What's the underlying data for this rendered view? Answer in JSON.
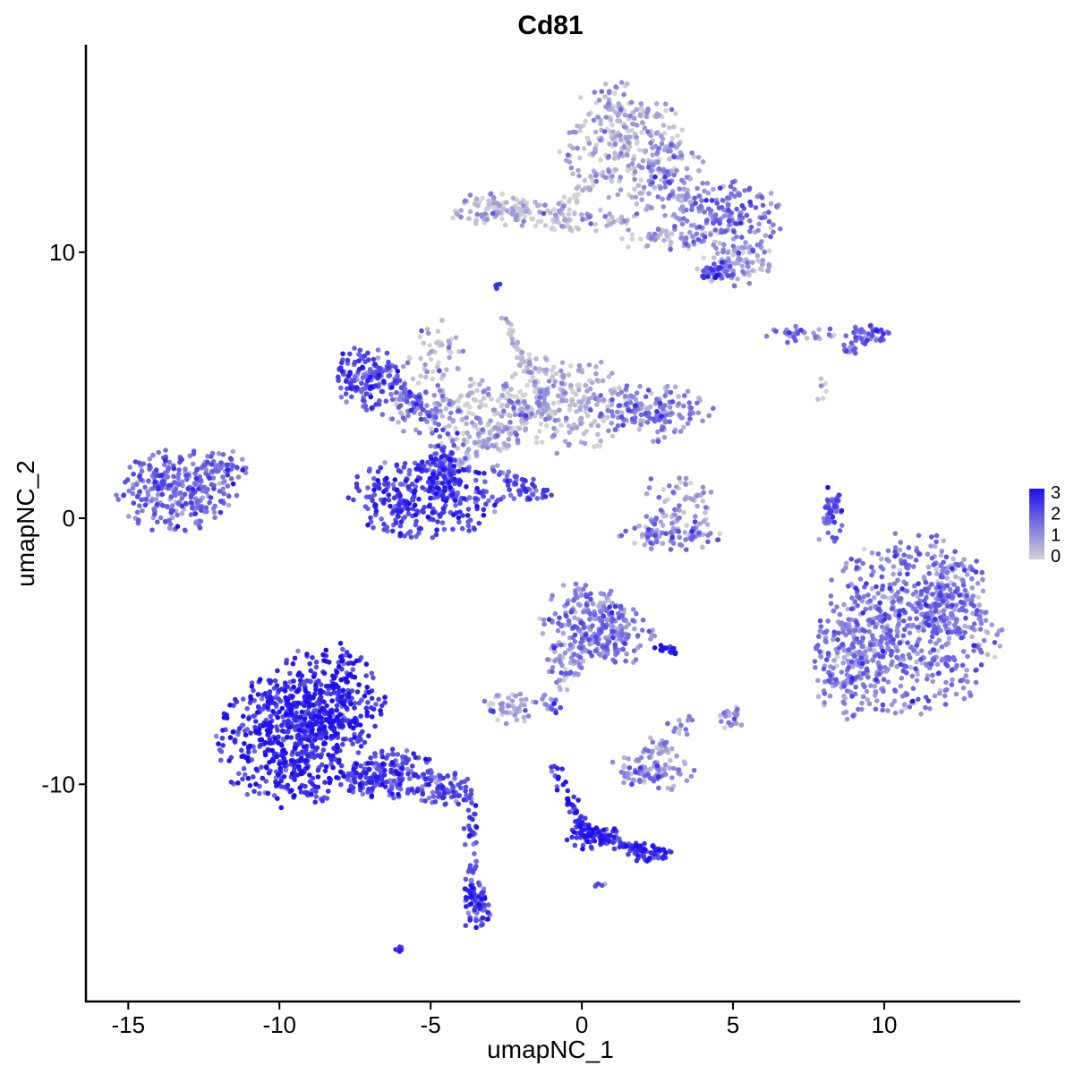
{
  "chart_data": {
    "type": "scatter",
    "title": "Cd81",
    "xlabel": "umapNC_1",
    "ylabel": "umapNC_2",
    "xlim": [
      -16.4,
      14.5
    ],
    "ylim": [
      -18.2,
      17.8
    ],
    "x_ticks": [
      -15,
      -10,
      -5,
      0,
      5,
      10
    ],
    "x_tick_labels": [
      "-15",
      "-10",
      "-5",
      "0",
      "5",
      "10"
    ],
    "y_ticks": [
      -10,
      0,
      10
    ],
    "y_tick_labels": [
      "-10",
      "0",
      "10"
    ],
    "grid": false,
    "legend": {
      "position": "right",
      "labels": [
        "3",
        "2",
        "1",
        "0"
      ],
      "values": [
        3,
        2,
        1,
        0
      ]
    },
    "color_scale": {
      "low": "#d3d3d3",
      "high": "#1e10ee",
      "min": 0,
      "max": 3
    },
    "clusters": [
      {
        "cx": 1.3,
        "cy": 14.2,
        "rx": 1.3,
        "ry": 1.4,
        "n": 260,
        "expr": 0.5
      },
      {
        "cx": 2.8,
        "cy": 12.6,
        "rx": 0.9,
        "ry": 1.0,
        "n": 120,
        "expr": 1.0
      },
      {
        "cx": 4.8,
        "cy": 11.3,
        "rx": 1.2,
        "ry": 0.9,
        "n": 170,
        "expr": 1.3
      },
      {
        "cx": 5.2,
        "cy": 9.5,
        "rx": 0.9,
        "ry": 0.5,
        "n": 90,
        "expr": 0.6
      },
      {
        "cx": 4.5,
        "cy": 9.2,
        "rx": 0.4,
        "ry": 0.3,
        "n": 40,
        "expr": 1.9
      },
      {
        "cx": -2.8,
        "cy": 11.6,
        "rx": 1.1,
        "ry": 0.4,
        "n": 100,
        "expr": 0.4
      },
      {
        "cx": -0.5,
        "cy": 11.2,
        "rx": 1.5,
        "ry": 0.3,
        "n": 70,
        "expr": 0.4
      },
      {
        "cx": 2.9,
        "cy": 10.5,
        "rx": 1.3,
        "ry": 0.3,
        "n": 60,
        "expr": 0.2
      },
      {
        "cx": -2.8,
        "cy": 8.8,
        "rx": 0.12,
        "ry": 0.12,
        "n": 6,
        "expr": 2.5
      },
      {
        "cx": 7.3,
        "cy": 6.9,
        "rx": 0.8,
        "ry": 0.2,
        "n": 30,
        "expr": 1.3
      },
      {
        "cx": 9.5,
        "cy": 6.9,
        "rx": 0.5,
        "ry": 0.3,
        "n": 40,
        "expr": 1.8
      },
      {
        "cx": 8.0,
        "cy": 4.8,
        "rx": 0.2,
        "ry": 0.3,
        "n": 6,
        "expr": 0.2
      },
      {
        "cx": -7.1,
        "cy": 5.3,
        "rx": 0.7,
        "ry": 0.8,
        "n": 150,
        "expr": 2.0
      },
      {
        "cx": -5.4,
        "cy": 4.5,
        "rx": 0.9,
        "ry": 0.9,
        "n": 80,
        "expr": 1.0
      },
      {
        "cx": -4.8,
        "cy": 6.2,
        "rx": 0.6,
        "ry": 0.8,
        "n": 40,
        "expr": 0.2
      },
      {
        "cx": -3.2,
        "cy": 3.8,
        "rx": 1.2,
        "ry": 1.0,
        "n": 170,
        "expr": 0.4
      },
      {
        "cx": -0.6,
        "cy": 4.3,
        "rx": 1.4,
        "ry": 1.2,
        "n": 220,
        "expr": 0.5
      },
      {
        "cx": 2.3,
        "cy": 4.1,
        "rx": 1.3,
        "ry": 0.6,
        "n": 150,
        "expr": 1.2
      },
      {
        "cx": -5.2,
        "cy": 0.8,
        "rx": 1.6,
        "ry": 1.0,
        "n": 340,
        "expr": 2.2
      },
      {
        "cx": -4.5,
        "cy": 2.2,
        "rx": 0.5,
        "ry": 0.8,
        "n": 70,
        "expr": 2.0
      },
      {
        "cx": -1.8,
        "cy": 1.1,
        "rx": 0.7,
        "ry": 0.3,
        "n": 30,
        "expr": 2.0
      },
      {
        "cx": -13.4,
        "cy": 1.0,
        "rx": 1.3,
        "ry": 1.0,
        "n": 300,
        "expr": 1.5
      },
      {
        "cx": -11.8,
        "cy": 2.0,
        "rx": 0.5,
        "ry": 0.4,
        "n": 40,
        "expr": 1.4
      },
      {
        "cx": 3.2,
        "cy": 0.6,
        "rx": 0.8,
        "ry": 0.8,
        "n": 60,
        "expr": 0.8
      },
      {
        "cx": 2.9,
        "cy": -0.6,
        "rx": 1.1,
        "ry": 0.4,
        "n": 90,
        "expr": 1.2
      },
      {
        "cx": 8.3,
        "cy": 0.2,
        "rx": 0.2,
        "ry": 0.9,
        "n": 30,
        "expr": 1.8
      },
      {
        "cx": 0.2,
        "cy": -3.9,
        "rx": 1.0,
        "ry": 1.0,
        "n": 200,
        "expr": 1.2
      },
      {
        "cx": 1.0,
        "cy": -4.5,
        "rx": 0.9,
        "ry": 0.7,
        "n": 90,
        "expr": 1.3
      },
      {
        "cx": -0.7,
        "cy": -5.5,
        "rx": 0.3,
        "ry": 0.7,
        "n": 25,
        "expr": 1.0
      },
      {
        "cx": -2.4,
        "cy": -7.1,
        "rx": 0.6,
        "ry": 0.4,
        "n": 50,
        "expr": 0.6
      },
      {
        "cx": 2.8,
        "cy": -5.0,
        "rx": 0.3,
        "ry": 0.15,
        "n": 18,
        "expr": 2.6
      },
      {
        "cx": 5.0,
        "cy": -7.5,
        "rx": 0.3,
        "ry": 0.3,
        "n": 20,
        "expr": 0.9
      },
      {
        "cx": 3.3,
        "cy": -7.7,
        "rx": 0.3,
        "ry": 0.3,
        "n": 12,
        "expr": 1.0
      },
      {
        "cx": -0.9,
        "cy": -7.2,
        "rx": 0.2,
        "ry": 0.2,
        "n": 8,
        "expr": 1.8
      },
      {
        "cx": 2.3,
        "cy": -9.5,
        "rx": 0.9,
        "ry": 0.5,
        "n": 90,
        "expr": 1.1
      },
      {
        "cx": 2.5,
        "cy": -8.6,
        "rx": 0.4,
        "ry": 0.3,
        "n": 20,
        "expr": 0.8
      },
      {
        "cx": 10.9,
        "cy": -4.0,
        "rx": 1.9,
        "ry": 2.2,
        "n": 650,
        "expr": 1.3
      },
      {
        "cx": 8.8,
        "cy": -5.4,
        "rx": 0.8,
        "ry": 1.4,
        "n": 170,
        "expr": 1.2
      },
      {
        "cx": 12.2,
        "cy": -3.0,
        "rx": 0.6,
        "ry": 0.9,
        "n": 80,
        "expr": 1.2
      },
      {
        "cx": -9.7,
        "cy": -8.4,
        "rx": 1.5,
        "ry": 1.6,
        "n": 520,
        "expr": 2.5
      },
      {
        "cx": -8.4,
        "cy": -6.8,
        "rx": 1.2,
        "ry": 1.4,
        "n": 280,
        "expr": 2.6
      },
      {
        "cx": -6.4,
        "cy": -9.6,
        "rx": 1.1,
        "ry": 0.6,
        "n": 190,
        "expr": 2.1
      },
      {
        "cx": -4.5,
        "cy": -10.2,
        "rx": 0.7,
        "ry": 0.4,
        "n": 70,
        "expr": 1.9
      },
      {
        "cx": -3.5,
        "cy": -14.6,
        "rx": 0.35,
        "ry": 0.6,
        "n": 70,
        "expr": 2.1
      },
      {
        "cx": -6.1,
        "cy": -16.2,
        "rx": 0.15,
        "ry": 0.1,
        "n": 6,
        "expr": 1.8
      },
      {
        "cx": 0.4,
        "cy": -12.0,
        "rx": 0.6,
        "ry": 0.3,
        "n": 60,
        "expr": 2.6
      },
      {
        "cx": 2.3,
        "cy": -12.6,
        "rx": 0.5,
        "ry": 0.25,
        "n": 50,
        "expr": 2.4
      },
      {
        "cx": 0.6,
        "cy": -13.8,
        "rx": 0.15,
        "ry": 0.15,
        "n": 5,
        "expr": 1.5
      }
    ],
    "segments": [
      {
        "from": [
          -2.6,
          7.6
        ],
        "to": [
          -1.0,
          3.8
        ],
        "n": 70,
        "expr": 0.3
      },
      {
        "from": [
          -4.7,
          1.6
        ],
        "to": [
          -1.2,
          4.3
        ],
        "n": 60,
        "expr": 0.5
      },
      {
        "from": [
          -3.0,
          2.0
        ],
        "to": [
          -1.3,
          0.8
        ],
        "n": 30,
        "expr": 1.5
      },
      {
        "from": [
          -6.3,
          5.4
        ],
        "to": [
          -4.7,
          3.3
        ],
        "n": 40,
        "expr": 1.6
      },
      {
        "from": [
          -3.7,
          -10.6
        ],
        "to": [
          -3.6,
          -14.2
        ],
        "n": 40,
        "expr": 2.0
      },
      {
        "from": [
          -0.9,
          -9.3
        ],
        "to": [
          0.1,
          -11.8
        ],
        "n": 50,
        "expr": 2.4
      },
      {
        "from": [
          0.4,
          -11.8
        ],
        "to": [
          2.0,
          -12.5
        ],
        "n": 50,
        "expr": 2.2
      },
      {
        "from": [
          0.0,
          -5.3
        ],
        "to": [
          -1.2,
          -7.0
        ],
        "n": 30,
        "expr": 0.8
      },
      {
        "from": [
          8.5,
          0.9
        ],
        "to": [
          7.9,
          -0.8
        ],
        "n": 20,
        "expr": 1.5
      },
      {
        "from": [
          8.5,
          6.2
        ],
        "to": [
          9.4,
          6.8
        ],
        "n": 15,
        "expr": 1.5
      },
      {
        "from": [
          -1.0,
          11.3
        ],
        "to": [
          0.6,
          13.0
        ],
        "n": 30,
        "expr": 0.3
      },
      {
        "from": [
          2.7,
          3.8
        ],
        "to": [
          2.6,
          2.8
        ],
        "n": 10,
        "expr": 1.0
      }
    ]
  }
}
